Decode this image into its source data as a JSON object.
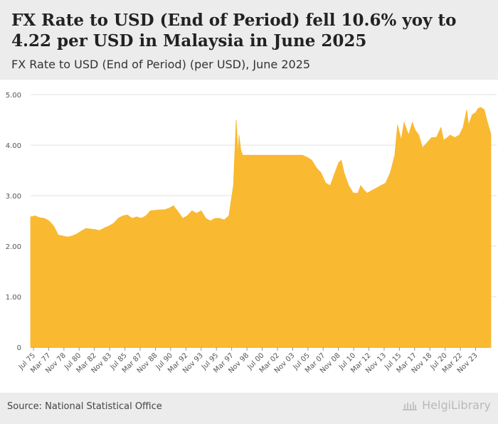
{
  "header": {
    "title": "FX Rate to USD (End of Period) fell 10.6% yoy to 4.22 per USD in Malaysia in June 2025",
    "subtitle": "FX Rate to USD (End of Period) (per USD), June 2025"
  },
  "footer": {
    "source": "Source: National Statistical Office",
    "brand": "HelgiLibrary"
  },
  "colors": {
    "area": "#f9b931",
    "grid": "#e2e2e2",
    "axis": "#555555"
  },
  "chart_data": {
    "type": "area",
    "title": "FX Rate to USD (End of Period) (per USD), June 2025",
    "xlabel": "",
    "ylabel": "",
    "ylim": [
      0,
      5
    ],
    "yticks": [
      "0",
      "1.00",
      "2.00",
      "3.00",
      "4.00",
      "5.00"
    ],
    "x_range": [
      1975.5,
      2025.42
    ],
    "xtick_labels": [
      "Jul 75",
      "Mar 77",
      "Nov 78",
      "Jul 80",
      "Mar 82",
      "Nov 83",
      "Jul 85",
      "Mar 87",
      "Nov 88",
      "Jul 90",
      "Mar 92",
      "Nov 93",
      "Jul 95",
      "Mar 97",
      "Nov 98",
      "Jul 00",
      "Mar 02",
      "Nov 03",
      "Jul 05",
      "Mar 07",
      "Nov 08",
      "Jul 10",
      "Mar 12",
      "Nov 13",
      "Jul 15",
      "Mar 17",
      "Nov 18",
      "Jul 20",
      "Mar 22",
      "Nov 23"
    ],
    "x": [
      1975.5,
      1976.0,
      1976.5,
      1977.0,
      1977.5,
      1978.0,
      1978.5,
      1979.0,
      1979.5,
      1980.0,
      1980.5,
      1981.0,
      1981.5,
      1982.0,
      1982.5,
      1983.0,
      1983.5,
      1984.0,
      1984.5,
      1985.0,
      1985.5,
      1986.0,
      1986.5,
      1987.0,
      1987.5,
      1988.0,
      1988.5,
      1989.0,
      1989.5,
      1990.0,
      1990.5,
      1991.0,
      1991.5,
      1992.0,
      1992.5,
      1993.0,
      1993.5,
      1994.0,
      1994.5,
      1995.0,
      1995.5,
      1996.0,
      1996.5,
      1997.0,
      1997.5,
      1997.8,
      1998.0,
      1998.1,
      1998.3,
      1998.5,
      1998.7,
      1998.9,
      1999.5,
      2000.0,
      2001.0,
      2002.0,
      2003.0,
      2004.0,
      2005.0,
      2005.6,
      2006.0,
      2006.5,
      2007.0,
      2007.5,
      2008.0,
      2008.5,
      2008.9,
      2009.2,
      2009.5,
      2010.0,
      2010.5,
      2011.0,
      2011.3,
      2011.7,
      2012.0,
      2012.5,
      2013.0,
      2013.5,
      2014.0,
      2014.5,
      2015.0,
      2015.3,
      2015.7,
      2016.0,
      2016.5,
      2016.9,
      2017.2,
      2017.6,
      2018.0,
      2018.5,
      2019.0,
      2019.5,
      2020.0,
      2020.3,
      2020.7,
      2021.0,
      2021.5,
      2022.0,
      2022.4,
      2022.8,
      2023.0,
      2023.4,
      2023.8,
      2024.0,
      2024.3,
      2024.7,
      2025.0,
      2025.42
    ],
    "values": [
      2.58,
      2.6,
      2.56,
      2.55,
      2.5,
      2.4,
      2.22,
      2.2,
      2.18,
      2.2,
      2.24,
      2.3,
      2.35,
      2.34,
      2.33,
      2.31,
      2.36,
      2.4,
      2.45,
      2.55,
      2.6,
      2.62,
      2.55,
      2.58,
      2.55,
      2.6,
      2.7,
      2.71,
      2.72,
      2.72,
      2.75,
      2.8,
      2.68,
      2.55,
      2.6,
      2.7,
      2.65,
      2.7,
      2.55,
      2.5,
      2.55,
      2.55,
      2.52,
      2.6,
      3.2,
      4.5,
      3.8,
      4.2,
      3.9,
      3.8,
      3.8,
      3.8,
      3.8,
      3.8,
      3.8,
      3.8,
      3.8,
      3.8,
      3.8,
      3.75,
      3.7,
      3.55,
      3.45,
      3.25,
      3.2,
      3.45,
      3.65,
      3.7,
      3.45,
      3.2,
      3.05,
      3.05,
      3.2,
      3.1,
      3.05,
      3.1,
      3.15,
      3.2,
      3.25,
      3.45,
      3.8,
      4.4,
      4.1,
      4.45,
      4.2,
      4.45,
      4.3,
      4.2,
      3.95,
      4.05,
      4.15,
      4.15,
      4.35,
      4.1,
      4.15,
      4.2,
      4.15,
      4.2,
      4.35,
      4.7,
      4.4,
      4.6,
      4.65,
      4.72,
      4.75,
      4.7,
      4.48,
      4.22
    ]
  }
}
